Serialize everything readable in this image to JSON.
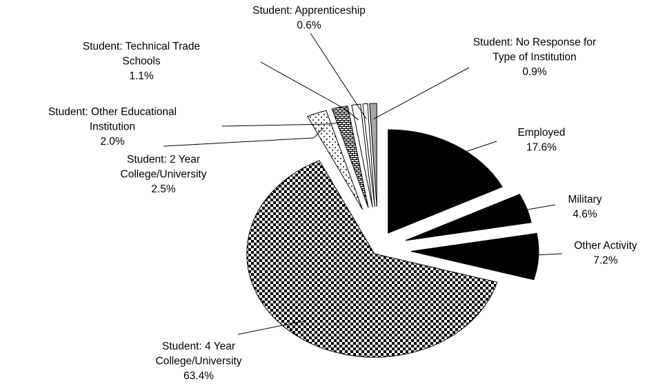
{
  "chart_data": {
    "type": "pie",
    "categories": [
      "Employed",
      "Military",
      "Other Activity",
      "Student: 4 Year College/University",
      "Student: 2 Year College/University",
      "Student: Other Educational Institution",
      "Student: Technical Trade Schools",
      "Student: Apprenticeship",
      "Student: No Response for Type of Institution"
    ],
    "values": [
      17.6,
      4.6,
      7.2,
      63.4,
      2.5,
      2.0,
      1.1,
      0.6,
      0.9
    ],
    "value_labels": [
      "17.6%",
      "4.6%",
      "7.2%",
      "63.4%",
      "2.5%",
      "2.0%",
      "1.1%",
      "0.6%",
      "0.9%"
    ],
    "fills": [
      "#000000",
      "#000000",
      "#000000",
      "checker",
      "dots",
      "brick",
      "#ffffff",
      "#ffffff",
      "#a6a6a6"
    ]
  }
}
